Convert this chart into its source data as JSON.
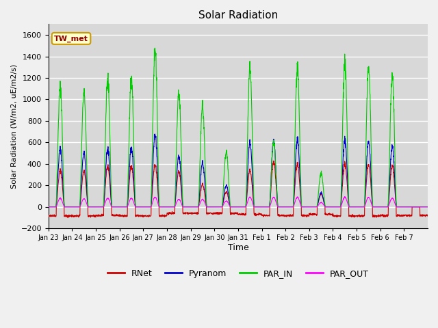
{
  "title": "Solar Radiation",
  "ylabel": "Solar Radiation (W/m2, uE/m2/s)",
  "xlabel": "Time",
  "ylim": [
    -200,
    1700
  ],
  "yticks": [
    -200,
    0,
    200,
    400,
    600,
    800,
    1000,
    1200,
    1400,
    1600
  ],
  "background_color": "#f0f0f0",
  "plot_bg_color": "#d8d8d8",
  "grid_color": "#ffffff",
  "annotation_text": "TW_met",
  "annotation_bg": "#ffffcc",
  "annotation_border": "#cc9900",
  "series": {
    "RNet": {
      "color": "#cc0000",
      "lw": 0.8
    },
    "Pyranom": {
      "color": "#0000cc",
      "lw": 0.8
    },
    "PAR_IN": {
      "color": "#00cc00",
      "lw": 0.8
    },
    "PAR_OUT": {
      "color": "#ff00ff",
      "lw": 0.8
    }
  },
  "xtick_labels": [
    "Jan 23",
    "Jan 24",
    "Jan 25",
    "Jan 26",
    "Jan 27",
    "Jan 28",
    "Jan 29",
    "Jan 30",
    "Jan 31",
    "Feb 1",
    "Feb 2",
    "Feb 3",
    "Feb 4",
    "Feb 5",
    "Feb 6",
    "Feb 7"
  ],
  "num_days": 16,
  "points_per_day": 144,
  "par_in_peaks": [
    1120,
    1060,
    1200,
    1200,
    1460,
    1060,
    940,
    510,
    1300,
    610,
    1300,
    310,
    1340,
    1320,
    1210,
    0
  ],
  "pyranom_peaks": [
    540,
    500,
    540,
    550,
    670,
    470,
    410,
    200,
    600,
    620,
    630,
    130,
    620,
    620,
    560,
    0
  ],
  "rnet_peaks": [
    340,
    330,
    380,
    380,
    390,
    330,
    210,
    140,
    340,
    420,
    400,
    120,
    400,
    400,
    380,
    0
  ],
  "par_out_peaks": [
    80,
    75,
    80,
    80,
    90,
    70,
    70,
    55,
    90,
    90,
    90,
    40,
    90,
    90,
    80,
    0
  ],
  "rnet_night": [
    -85,
    -85,
    -80,
    -85,
    -85,
    -60,
    -60,
    -60,
    -70,
    -80,
    -80,
    -70,
    -85,
    -85,
    -80,
    -80
  ]
}
